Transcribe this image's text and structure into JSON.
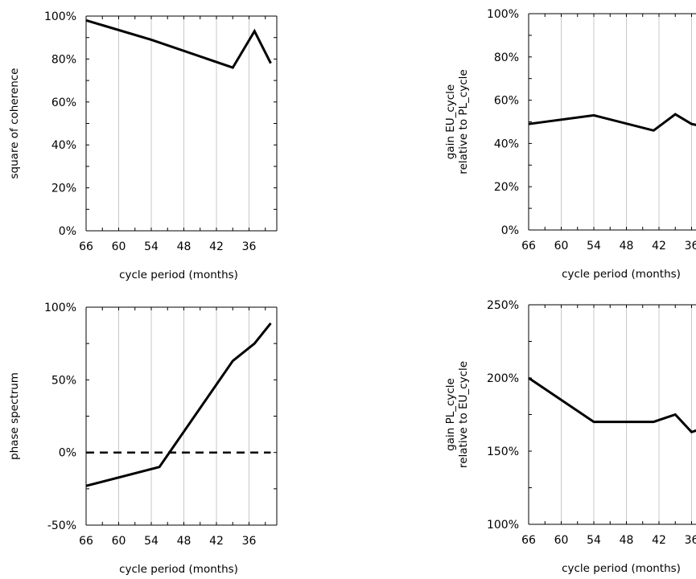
{
  "chart_data": [
    {
      "type": "line",
      "title": "",
      "xlabel": "cycle period (months)",
      "ylabel": "square of coherence",
      "x_ticks": [
        "66",
        "60",
        "54",
        "48",
        "42",
        "36"
      ],
      "xlim": [
        66,
        32
      ],
      "ylim": [
        0,
        100
      ],
      "y_ticks": [
        "100%",
        "80%",
        "60%",
        "40%",
        "20%",
        "0%"
      ],
      "y_tick_values": [
        100,
        80,
        60,
        40,
        20,
        0
      ],
      "grid": "vertical",
      "series": [
        {
          "x": [
            66,
            54,
            39,
            35,
            32
          ],
          "values": [
            98,
            89,
            76,
            93,
            78
          ],
          "color": "#000000",
          "style": "solid"
        }
      ]
    },
    {
      "type": "line",
      "title": "",
      "xlabel": "cycle period (months)",
      "ylabel": [
        "gain EU_cycle",
        "relative to PL_cycle"
      ],
      "x_ticks": [
        "66",
        "60",
        "54",
        "48",
        "42",
        "36"
      ],
      "xlim": [
        66,
        32
      ],
      "ylim": [
        0,
        100
      ],
      "y_ticks": [
        "100%",
        "80%",
        "60%",
        "40%",
        "20%",
        "0%"
      ],
      "y_tick_values": [
        100,
        80,
        60,
        40,
        20,
        0
      ],
      "grid": "vertical",
      "series": [
        {
          "x": [
            66,
            54,
            43,
            39,
            36,
            32
          ],
          "values": [
            49,
            53,
            46,
            53.5,
            49,
            47
          ],
          "color": "#000000",
          "style": "solid"
        }
      ]
    },
    {
      "type": "line",
      "title": "",
      "xlabel": "cycle period (months)",
      "ylabel": "phase spectrum",
      "x_ticks": [
        "66",
        "60",
        "54",
        "48",
        "42",
        "36"
      ],
      "xlim": [
        66,
        32
      ],
      "ylim": [
        -50,
        100
      ],
      "y_ticks": [
        "100%",
        "50%",
        "0%",
        "-50%"
      ],
      "y_tick_values": [
        100,
        50,
        0,
        -50
      ],
      "grid": "vertical",
      "series": [
        {
          "x": [
            66,
            52.5,
            39,
            35,
            32
          ],
          "values": [
            -23,
            -10,
            63,
            75,
            89
          ],
          "color": "#000000",
          "style": "solid"
        },
        {
          "x": [
            66,
            32
          ],
          "values": [
            0,
            0
          ],
          "color": "#000000",
          "style": "dashed"
        }
      ]
    },
    {
      "type": "line",
      "title": "",
      "xlabel": "cycle period (months)",
      "ylabel": [
        "gain PL_cycle",
        "relative to EU_cycle"
      ],
      "x_ticks": [
        "66",
        "60",
        "54",
        "48",
        "42",
        "36"
      ],
      "xlim": [
        66,
        32
      ],
      "ylim": [
        100,
        250
      ],
      "y_ticks": [
        "250%",
        "200%",
        "150%",
        "100%"
      ],
      "y_tick_values": [
        250,
        200,
        150,
        100
      ],
      "grid": "vertical",
      "series": [
        {
          "x": [
            66,
            54,
            43,
            39,
            36,
            32
          ],
          "values": [
            200,
            170,
            170,
            175,
            163,
            168
          ],
          "color": "#000000",
          "style": "solid"
        }
      ]
    }
  ]
}
